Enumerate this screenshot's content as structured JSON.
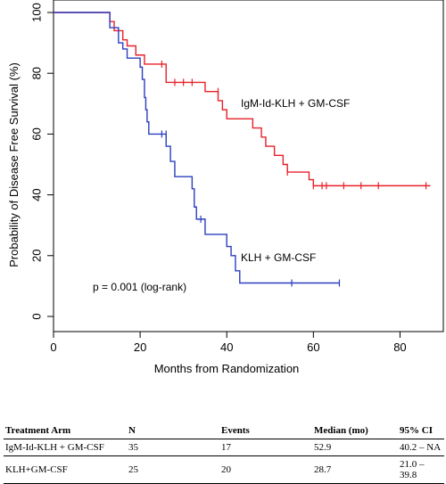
{
  "chart_data": {
    "type": "line",
    "title": "",
    "xlabel": "Months from Randomization",
    "ylabel": "Probability of Disease Free Survival (%)",
    "xlim": [
      0,
      90
    ],
    "ylim": [
      0,
      100
    ],
    "xticks": [
      "0",
      "20",
      "40",
      "60",
      "80"
    ],
    "yticks": [
      "0",
      "20",
      "40",
      "60",
      "80",
      "100"
    ],
    "grid": false,
    "series": [
      {
        "name": "IgM-Id-KLH + GM-CSF",
        "color": "#e8202a",
        "steps": [
          [
            0,
            100
          ],
          [
            13,
            100
          ],
          [
            13,
            97
          ],
          [
            14,
            94
          ],
          [
            16,
            91
          ],
          [
            17,
            89
          ],
          [
            19,
            86
          ],
          [
            21,
            83
          ],
          [
            26,
            80
          ],
          [
            26,
            77
          ],
          [
            35,
            74
          ],
          [
            38,
            71
          ],
          [
            39,
            68
          ],
          [
            40,
            65
          ],
          [
            46,
            62
          ],
          [
            48,
            59
          ],
          [
            49,
            56
          ],
          [
            51,
            53
          ],
          [
            53,
            50
          ],
          [
            54,
            47.5
          ],
          [
            59,
            45
          ],
          [
            60,
            43
          ],
          [
            87,
            43
          ]
        ],
        "censored": [
          [
            25,
            83
          ],
          [
            28,
            77
          ],
          [
            30,
            77
          ],
          [
            32,
            77
          ],
          [
            38,
            74
          ],
          [
            54,
            47.5
          ],
          [
            60,
            43
          ],
          [
            62,
            43
          ],
          [
            63,
            43
          ],
          [
            67,
            43
          ],
          [
            71,
            43
          ],
          [
            75,
            43
          ],
          [
            86,
            43
          ]
        ],
        "label": "IgM-Id-KLH + GM-CSF"
      },
      {
        "name": "KLH + GM-CSF",
        "color": "#2b3fbf",
        "steps": [
          [
            0,
            100
          ],
          [
            13,
            100
          ],
          [
            13,
            95
          ],
          [
            15,
            90
          ],
          [
            16,
            88
          ],
          [
            17,
            85
          ],
          [
            20,
            82
          ],
          [
            20.5,
            78
          ],
          [
            21,
            72
          ],
          [
            21.3,
            68
          ],
          [
            21.6,
            64
          ],
          [
            22,
            60
          ],
          [
            26,
            56
          ],
          [
            27,
            51
          ],
          [
            28,
            46
          ],
          [
            32,
            42
          ],
          [
            32.5,
            36
          ],
          [
            33,
            32
          ],
          [
            35,
            27
          ],
          [
            40,
            23
          ],
          [
            41,
            20
          ],
          [
            42,
            15
          ],
          [
            43,
            11
          ],
          [
            66,
            11
          ]
        ],
        "censored": [
          [
            25,
            60
          ],
          [
            26,
            60
          ],
          [
            34,
            32
          ],
          [
            55,
            11
          ],
          [
            66,
            11
          ]
        ],
        "label": "KLH + GM-CSF"
      }
    ],
    "annotations": [
      "p = 0.001 (log-rank)"
    ]
  },
  "table": {
    "headers": [
      "Treatment Arm",
      "N",
      "Events",
      "Median (mo)",
      "95% CI"
    ],
    "rows": [
      [
        "IgM-Id-KLH + GM-CSF",
        "35",
        "17",
        "52.9",
        "40.2 – NA"
      ],
      [
        "KLH+GM-CSF",
        "25",
        "20",
        "28.7",
        "21.0 – 39.8"
      ]
    ]
  }
}
